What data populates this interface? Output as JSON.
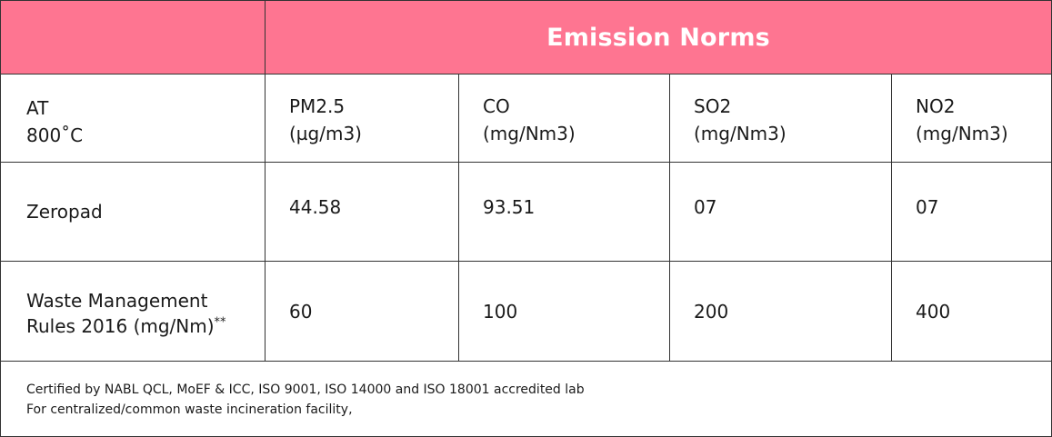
{
  "header": {
    "title": "Emission Norms"
  },
  "columns": [
    {
      "line1": "AT",
      "line2": "800˚C"
    },
    {
      "line1": "PM2.5",
      "line2": "(µg/m3)"
    },
    {
      "line1": "CO",
      "line2": "(mg/Nm3)"
    },
    {
      "line1": "SO2",
      "line2": "(mg/Nm3)"
    },
    {
      "line1": "NO2",
      "line2": "(mg/Nm3)"
    }
  ],
  "rows": [
    {
      "label_line1": "Zeropad",
      "values": [
        "44.58",
        "93.51",
        "07",
        "07"
      ]
    },
    {
      "label_line1": "Waste Management",
      "label_line2": "Rules 2016 (mg/Nm)",
      "label_sup": "**",
      "values": [
        "60",
        "100",
        "200",
        "400"
      ]
    }
  ],
  "footer": {
    "line1": "Certified by NABL QCL, MoEF & ICC, ISO 9001, ISO 14000 and ISO 18001 accredited lab",
    "line2": "For centralized/common waste incineration facility,"
  },
  "colors": {
    "header_bg": "#fe7591",
    "header_text": "#ffffff",
    "border": "#333333"
  }
}
